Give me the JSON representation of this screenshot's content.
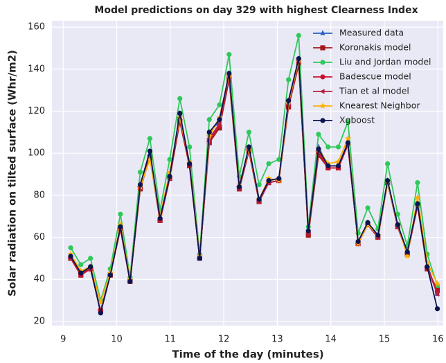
{
  "chart_data": {
    "type": "line",
    "title": "Model predictions on day 329 with highest Clearness Index",
    "xlabel": "Time of the day (minutes)",
    "ylabel": "Solar radiation on tilted surface (Whr/m2)",
    "x": [
      9.14,
      9.33,
      9.51,
      9.7,
      9.88,
      10.07,
      10.25,
      10.44,
      10.62,
      10.81,
      10.99,
      11.18,
      11.36,
      11.55,
      11.73,
      11.92,
      12.1,
      12.29,
      12.47,
      12.66,
      12.84,
      13.03,
      13.21,
      13.4,
      13.58,
      13.77,
      13.95,
      14.14,
      14.32,
      14.51,
      14.69,
      14.88,
      15.06,
      15.25,
      15.43,
      15.62,
      15.8,
      15.99
    ],
    "xlim": [
      8.79,
      16.1
    ],
    "xticks": [
      9,
      10,
      11,
      12,
      13,
      14,
      15,
      16
    ],
    "ylim": [
      18,
      163
    ],
    "yticks": [
      20,
      40,
      60,
      80,
      100,
      120,
      140,
      160
    ],
    "grid": true,
    "legend": "upper right",
    "series": [
      {
        "name": "Measured data",
        "color": "#2a5cc4",
        "marker": "^",
        "values": [
          51,
          43,
          46,
          25,
          42,
          65,
          40,
          85,
          100,
          69,
          89,
          119,
          95,
          50,
          110,
          115,
          138,
          84,
          103,
          78,
          87,
          88,
          125,
          145,
          63,
          103,
          94,
          94,
          105,
          58,
          67,
          61,
          87,
          66,
          53,
          76,
          47,
          33
        ]
      },
      {
        "name": "Koronakis model",
        "color": "#a31818",
        "marker": "s",
        "values": [
          50,
          42,
          45,
          25,
          42,
          64,
          39,
          83,
          98,
          68,
          88,
          115,
          94,
          50,
          105,
          112,
          135,
          83,
          101,
          77,
          86,
          87,
          122,
          142,
          61,
          99,
          93,
          93,
          104,
          57,
          66,
          60,
          86,
          65,
          52,
          75,
          45,
          35
        ]
      },
      {
        "name": "Liu and Jordan model",
        "color": "#2fc95a",
        "marker": "o",
        "values": [
          55,
          47,
          50,
          30,
          45,
          71,
          41,
          91,
          107,
          73,
          97,
          126,
          103,
          52,
          116,
          123,
          147,
          89,
          110,
          85,
          95,
          97,
          135,
          156,
          65,
          109,
          103,
          103,
          115,
          62,
          74,
          64,
          95,
          71,
          56,
          86,
          52,
          37
        ]
      },
      {
        "name": "Badescue model",
        "color": "#c8102e",
        "marker": "o",
        "values": [
          50,
          42,
          45,
          25,
          42,
          64,
          39,
          83,
          98,
          68,
          88,
          116,
          94,
          50,
          106,
          113,
          136,
          83,
          101,
          77,
          86,
          87,
          123,
          143,
          62,
          100,
          93,
          93,
          104,
          57,
          66,
          60,
          86,
          65,
          52,
          75,
          46,
          34
        ]
      },
      {
        "name": "Tian et al model",
        "color": "#b5223f",
        "marker": "<",
        "values": [
          50,
          43,
          45,
          25,
          42,
          65,
          39,
          84,
          99,
          68,
          88,
          117,
          95,
          50,
          107,
          114,
          137,
          84,
          102,
          77,
          86,
          87,
          123,
          144,
          62,
          101,
          94,
          94,
          104,
          57,
          66,
          60,
          86,
          65,
          52,
          75,
          46,
          33
        ]
      },
      {
        "name": "Knearest Neighbor",
        "color": "#ffb000",
        "marker": "*",
        "values": [
          52,
          44,
          46,
          29,
          43,
          66,
          40,
          84,
          97,
          70,
          91,
          117,
          96,
          51,
          108,
          117,
          137,
          85,
          102,
          78,
          88,
          87,
          124,
          144,
          63,
          102,
          95,
          96,
          107,
          57,
          66,
          61,
          86,
          66,
          51,
          79,
          48,
          38
        ]
      },
      {
        "name": "Xgboost",
        "color": "#0c1450",
        "marker": "o",
        "values": [
          51,
          43,
          46,
          24,
          42,
          65,
          39,
          85,
          101,
          69,
          89,
          119,
          95,
          50,
          110,
          116,
          138,
          84,
          103,
          78,
          87,
          88,
          125,
          145,
          63,
          102,
          94,
          94,
          105,
          58,
          67,
          61,
          87,
          66,
          53,
          76,
          46,
          26
        ]
      }
    ]
  }
}
